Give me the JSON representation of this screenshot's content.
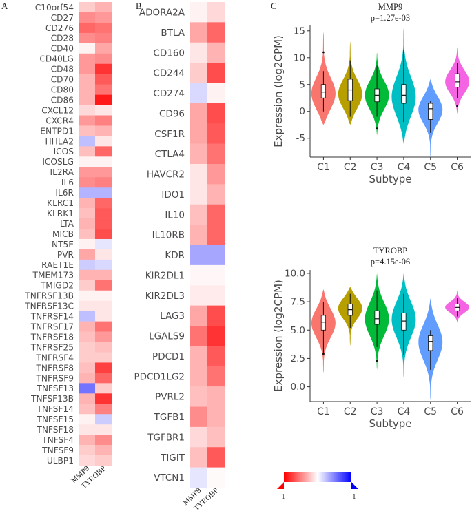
{
  "panels": {
    "a": "A",
    "b": "B",
    "c": "C"
  },
  "heatmap_columns": [
    "MMP9",
    "TYROBP"
  ],
  "legend": {
    "low_label": "1",
    "high_label": "-1"
  },
  "chart_data": [
    {
      "type": "heatmap",
      "panel": "A",
      "columns": [
        "MMP9",
        "TYROBP"
      ],
      "rows": [
        "C10orf54",
        "CD27",
        "CD276",
        "CD28",
        "CD40",
        "CD40LG",
        "CD48",
        "CD70",
        "CD80",
        "CD86",
        "CXCL12",
        "CXCR4",
        "ENTPD1",
        "HHLA2",
        "ICOS",
        "ICOSLG",
        "IL2RA",
        "IL6",
        "IL6R",
        "KLRC1",
        "KLRK1",
        "LTA",
        "MICB",
        "NT5E",
        "PVR",
        "RAET1E",
        "TMEM173",
        "TMIGD2",
        "TNFRSF13B",
        "TNFRSF13C",
        "TNFRSF14",
        "TNFRSF17",
        "TNFRSF18",
        "TNFRSF25",
        "TNFRSF4",
        "TNFRSF8",
        "TNFRSF9",
        "TNFSF13",
        "TNFSF13B",
        "TNFSF14",
        "TNFSF15",
        "TNFSF18",
        "TNFSF4",
        "TNFSF9",
        "ULBP1"
      ],
      "values": [
        [
          0.2,
          0.3
        ],
        [
          0.45,
          0.4
        ],
        [
          0.6,
          0.55
        ],
        [
          0.45,
          0.5
        ],
        [
          0.05,
          0.35
        ],
        [
          0.4,
          0.45
        ],
        [
          0.4,
          0.8
        ],
        [
          0.3,
          0.65
        ],
        [
          0.3,
          0.55
        ],
        [
          0.3,
          0.9
        ],
        [
          0.15,
          0.1
        ],
        [
          0.4,
          0.5
        ],
        [
          0.25,
          0.3
        ],
        [
          -0.25,
          0.1
        ],
        [
          0.25,
          0.6
        ],
        [
          0.05,
          0.05
        ],
        [
          0.4,
          0.4
        ],
        [
          0.45,
          0.5
        ],
        [
          -0.3,
          -0.3
        ],
        [
          0.3,
          0.6
        ],
        [
          0.25,
          0.65
        ],
        [
          0.3,
          0.65
        ],
        [
          0.25,
          0.7
        ],
        [
          0.05,
          -0.1
        ],
        [
          0.35,
          0.1
        ],
        [
          -0.2,
          -0.15
        ],
        [
          0.3,
          0.3
        ],
        [
          0.2,
          0.55
        ],
        [
          0.05,
          0.05
        ],
        [
          0.1,
          0.1
        ],
        [
          -0.25,
          0.1
        ],
        [
          0.3,
          0.55
        ],
        [
          0.25,
          0.4
        ],
        [
          0.2,
          0.25
        ],
        [
          0.2,
          0.2
        ],
        [
          0.25,
          0.75
        ],
        [
          0.3,
          0.6
        ],
        [
          -0.55,
          0.2
        ],
        [
          0.3,
          0.8
        ],
        [
          0.25,
          0.5
        ],
        [
          0.05,
          -0.2
        ],
        [
          0.1,
          0.1
        ],
        [
          0.3,
          0.45
        ],
        [
          0.2,
          0.3
        ],
        [
          0.15,
          0.2
        ]
      ]
    },
    {
      "type": "heatmap",
      "panel": "B",
      "columns": [
        "MMP9",
        "TYROBP"
      ],
      "rows": [
        "ADORA2A",
        "BTLA",
        "CD160",
        "CD244",
        "CD274",
        "CD96",
        "CSF1R",
        "CTLA4",
        "HAVCR2",
        "IDO1",
        "IL10",
        "IL10RB",
        "KDR",
        "KIR2DL1",
        "KIR2DL3",
        "LAG3",
        "LGALS9",
        "PDCD1",
        "PDCD1LG2",
        "PVRL2",
        "TGFB1",
        "TGFBR1",
        "TIGIT",
        "VTCN1"
      ],
      "values": [
        [
          0.05,
          0.15
        ],
        [
          0.35,
          0.6
        ],
        [
          0.1,
          0.3
        ],
        [
          0.2,
          0.7
        ],
        [
          -0.15,
          0.05
        ],
        [
          0.35,
          0.7
        ],
        [
          0.35,
          0.65
        ],
        [
          0.3,
          0.55
        ],
        [
          0.1,
          0.4
        ],
        [
          0.1,
          0.3
        ],
        [
          0.25,
          0.6
        ],
        [
          0.3,
          0.6
        ],
        [
          -0.35,
          -0.35
        ],
        [
          0.03,
          0.03
        ],
        [
          0.08,
          0.08
        ],
        [
          0.35,
          0.7
        ],
        [
          0.55,
          0.8
        ],
        [
          0.3,
          0.65
        ],
        [
          0.3,
          0.55
        ],
        [
          0.25,
          0.3
        ],
        [
          0.45,
          0.3
        ],
        [
          0.15,
          0.25
        ],
        [
          0.25,
          0.65
        ],
        [
          -0.1,
          0.02
        ]
      ]
    },
    {
      "type": "violin",
      "title": "MMP9",
      "subtitle": "p=1.27e-03",
      "xlabel": "Subtype",
      "ylabel": "Expression (log2CPM)",
      "ylim": [
        -8.5,
        16
      ],
      "yticks": [
        -5,
        0,
        5,
        10,
        15
      ],
      "categories": [
        "C1",
        "C2",
        "C3",
        "C4",
        "C5",
        "C6"
      ],
      "colors": [
        "#f8766d",
        "#b79f00",
        "#00ba38",
        "#00bfc4",
        "#619cff",
        "#f564e3"
      ],
      "violins": [
        {
          "min": -2.5,
          "max": 14.8,
          "mode": 3.0,
          "q1": 2.5,
          "median": 3.6,
          "q3": 5.0,
          "whisker_low": 0,
          "whisker_high": 7.5,
          "outliers": [
            11
          ]
        },
        {
          "min": -2.5,
          "max": 13.0,
          "mode": 3.0,
          "q1": 2.0,
          "median": 4.0,
          "q3": 6.0,
          "whisker_low": -1,
          "whisker_high": 9.5,
          "outliers": []
        },
        {
          "min": -4.5,
          "max": 11.0,
          "mode": 3.0,
          "q1": 1.8,
          "median": 3.0,
          "q3": 4.2,
          "whisker_low": -1,
          "whisker_high": 8.5,
          "outliers": [
            -3.2
          ]
        },
        {
          "min": -6.0,
          "max": 15.5,
          "mode": 2.5,
          "q1": 1.5,
          "median": 3.0,
          "q3": 5.0,
          "whisker_low": -2,
          "whisker_high": 11.5,
          "outliers": []
        },
        {
          "min": -8.5,
          "max": 6.0,
          "mode": 0.5,
          "q1": -1.5,
          "median": 0.5,
          "q3": 1.5,
          "whisker_low": -4,
          "whisker_high": 2,
          "outliers": []
        },
        {
          "min": -0.5,
          "max": 12.0,
          "mode": 5.5,
          "q1": 4.5,
          "median": 5.5,
          "q3": 7.0,
          "whisker_low": 2.5,
          "whisker_high": 9.0,
          "outliers": [
            1
          ]
        }
      ]
    },
    {
      "type": "violin",
      "title": "TYROBP",
      "subtitle": "p=4.15e-06",
      "xlabel": "Subtype",
      "ylabel": "Expression (log2CPM)",
      "ylim": [
        -1.3,
        10.3
      ],
      "yticks": [
        0.0,
        2.5,
        5.0,
        7.5,
        10.0
      ],
      "categories": [
        "C1",
        "C2",
        "C3",
        "C4",
        "C5",
        "C6"
      ],
      "colors": [
        "#f8766d",
        "#b79f00",
        "#00ba38",
        "#00bfc4",
        "#619cff",
        "#f564e3"
      ],
      "violins": [
        {
          "min": 1.2,
          "max": 8.6,
          "mode": 5.7,
          "q1": 5.0,
          "median": 5.7,
          "q3": 6.3,
          "whisker_low": 3.0,
          "whisker_high": 7.5,
          "outliers": [
            2.9
          ]
        },
        {
          "min": 3.6,
          "max": 8.8,
          "mode": 7.0,
          "q1": 6.3,
          "median": 6.8,
          "q3": 7.3,
          "whisker_low": 5.2,
          "whisker_high": 8.2,
          "outliers": []
        },
        {
          "min": 1.5,
          "max": 10.0,
          "mode": 6.0,
          "q1": 5.5,
          "median": 6.0,
          "q3": 6.7,
          "whisker_low": 3.5,
          "whisker_high": 8.5,
          "outliers": [
            2.3
          ]
        },
        {
          "min": 0.8,
          "max": 10.0,
          "mode": 6.0,
          "q1": 5.0,
          "median": 5.8,
          "q3": 6.5,
          "whisker_low": 2.8,
          "whisker_high": 8.2,
          "outliers": []
        },
        {
          "min": -1.2,
          "max": 7.8,
          "mode": 4.0,
          "q1": 3.2,
          "median": 4.0,
          "q3": 4.5,
          "whisker_low": 1.5,
          "whisker_high": 5.0,
          "outliers": []
        },
        {
          "min": 5.7,
          "max": 8.5,
          "mode": 7.0,
          "q1": 6.7,
          "median": 7.0,
          "q3": 7.3,
          "whisker_low": 6.2,
          "whisker_high": 7.8,
          "outliers": []
        }
      ]
    }
  ]
}
